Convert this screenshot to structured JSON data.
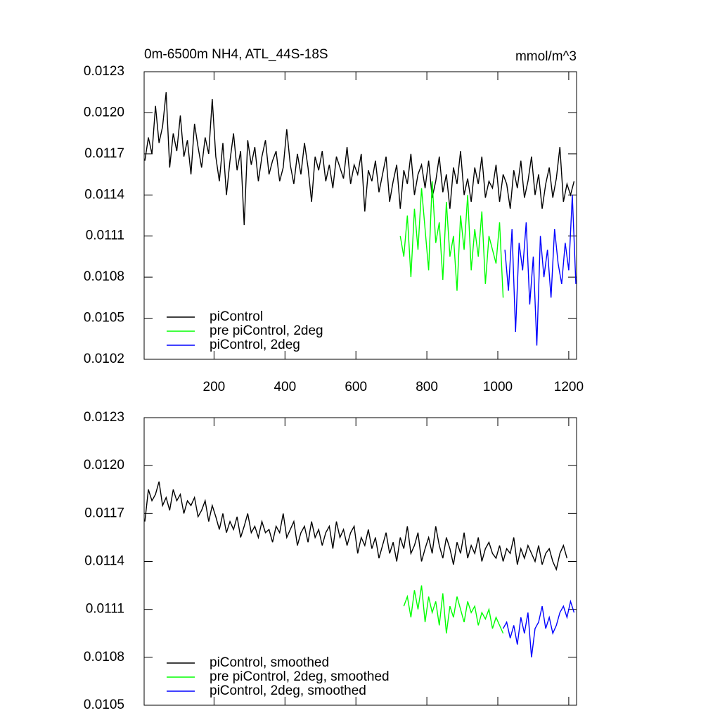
{
  "chart_data": [
    {
      "type": "line",
      "title": "0m-6500m NH4, ATL_44S-18S",
      "units": "mmol/m^3",
      "xlim": [
        3,
        1222
      ],
      "xticks": [
        200,
        400,
        600,
        800,
        1000,
        1200
      ],
      "xtick_labels": true,
      "ylim": [
        0.0102,
        0.0123
      ],
      "yticks": [
        0.0123,
        {
          "value": 0.012,
          "label": "0.0120"
        },
        0.0117,
        0.0114,
        0.0111,
        0.0108,
        0.0105,
        0.0102
      ],
      "legend": "lower left",
      "series": [
        {
          "name": "piControl",
          "color": "#000000",
          "x": [
            5,
            15,
            25,
            35,
            45,
            55,
            65,
            75,
            85,
            95,
            105,
            115,
            125,
            135,
            145,
            155,
            165,
            175,
            185,
            195,
            205,
            215,
            225,
            235,
            245,
            255,
            265,
            275,
            285,
            295,
            305,
            315,
            325,
            335,
            345,
            355,
            365,
            375,
            385,
            395,
            405,
            415,
            425,
            435,
            445,
            455,
            465,
            475,
            485,
            495,
            505,
            515,
            525,
            535,
            545,
            555,
            565,
            575,
            585,
            595,
            605,
            615,
            625,
            635,
            645,
            655,
            665,
            675,
            685,
            695,
            705,
            715,
            725,
            735,
            745,
            755,
            765,
            775,
            785,
            795,
            805,
            815,
            825,
            835,
            845,
            855,
            865,
            875,
            885,
            895,
            905,
            915,
            925,
            935,
            945,
            955,
            965,
            975,
            985,
            995,
            1005,
            1015,
            1025,
            1035,
            1045,
            1055,
            1065,
            1075,
            1085,
            1095,
            1105,
            1115,
            1125,
            1135,
            1145,
            1155,
            1165,
            1175,
            1185,
            1195,
            1205,
            1215
          ],
          "values": [
            0.01165,
            0.01182,
            0.0117,
            0.01205,
            0.01178,
            0.0119,
            0.01215,
            0.0116,
            0.01185,
            0.01172,
            0.01198,
            0.01168,
            0.0118,
            0.01155,
            0.01192,
            0.01175,
            0.0116,
            0.01182,
            0.0117,
            0.0121,
            0.01168,
            0.0115,
            0.01178,
            0.0114,
            0.01165,
            0.01185,
            0.01158,
            0.01172,
            0.01118,
            0.0118,
            0.01162,
            0.01175,
            0.0115,
            0.01168,
            0.0118,
            0.01155,
            0.01165,
            0.01172,
            0.0115,
            0.0116,
            0.01188,
            0.01162,
            0.01148,
            0.0117,
            0.01155,
            0.01178,
            0.0116,
            0.01135,
            0.01168,
            0.01158,
            0.01172,
            0.0115,
            0.01162,
            0.01145,
            0.01168,
            0.0116,
            0.01152,
            0.01175,
            0.01148,
            0.01162,
            0.01155,
            0.0117,
            0.01128,
            0.01158,
            0.0115,
            0.01165,
            0.01142,
            0.01155,
            0.01168,
            0.01135,
            0.0115,
            0.01162,
            0.0113,
            0.01158,
            0.01148,
            0.0117,
            0.0114,
            0.01155,
            0.01162,
            0.01145,
            0.01165,
            0.01138,
            0.0115,
            0.01168,
            0.01142,
            0.01155,
            0.0113,
            0.0116,
            0.01148,
            0.01172,
            0.0114,
            0.01152,
            0.01135,
            0.0116,
            0.01148,
            0.01168,
            0.01138,
            0.0115,
            0.01145,
            0.01162,
            0.01135,
            0.01155,
            0.01148,
            0.0113,
            0.01158,
            0.01145,
            0.01165,
            0.01138,
            0.0115,
            0.01168,
            0.0114,
            0.01155,
            0.0113,
            0.01148,
            0.0116,
            0.01138,
            0.01152,
            0.01175,
            0.01135,
            0.01148,
            0.0114,
            0.0115
          ]
        },
        {
          "name": "pre piControl, 2deg",
          "color": "#00ff00",
          "x": [
            725,
            735,
            745,
            755,
            765,
            775,
            785,
            795,
            805,
            815,
            825,
            835,
            845,
            855,
            865,
            875,
            885,
            895,
            905,
            915,
            925,
            935,
            945,
            955,
            965,
            975,
            985,
            995,
            1005,
            1015
          ],
          "values": [
            0.0111,
            0.01095,
            0.01125,
            0.0108,
            0.0113,
            0.011,
            0.01145,
            0.01115,
            0.01085,
            0.0115,
            0.01105,
            0.0112,
            0.01078,
            0.01135,
            0.01095,
            0.0111,
            0.0107,
            0.01125,
            0.011,
            0.0114,
            0.01085,
            0.01115,
            0.01095,
            0.01128,
            0.01075,
            0.0111,
            0.011,
            0.0109,
            0.0112,
            0.01065
          ]
        },
        {
          "name": "piControl, 2deg",
          "color": "#0000ff",
          "x": [
            1020,
            1030,
            1040,
            1050,
            1060,
            1070,
            1080,
            1090,
            1100,
            1110,
            1120,
            1130,
            1140,
            1150,
            1160,
            1170,
            1180,
            1190,
            1200,
            1210,
            1220
          ],
          "values": [
            0.011,
            0.0107,
            0.01115,
            0.0104,
            0.01105,
            0.01085,
            0.0112,
            0.0106,
            0.01095,
            0.0103,
            0.0111,
            0.0108,
            0.011,
            0.01065,
            0.01115,
            0.0109,
            0.01075,
            0.01105,
            0.01085,
            0.0114,
            0.01075
          ]
        }
      ]
    },
    {
      "type": "line",
      "xlim": [
        3,
        1222
      ],
      "xticks": [
        200,
        400,
        600,
        800,
        1000,
        1200
      ],
      "xtick_labels": false,
      "ylim": [
        0.0105,
        0.0123
      ],
      "yticks": [
        0.0123,
        {
          "value": 0.012,
          "label": "0.0120"
        },
        0.0117,
        0.0114,
        0.0111,
        0.0108,
        0.0105
      ],
      "legend": "lower left",
      "series": [
        {
          "name": "piControl, smoothed",
          "color": "#000000",
          "x": [
            5,
            15,
            25,
            35,
            45,
            55,
            65,
            75,
            85,
            95,
            105,
            115,
            125,
            135,
            145,
            155,
            165,
            175,
            185,
            195,
            205,
            215,
            225,
            235,
            245,
            255,
            265,
            275,
            285,
            295,
            305,
            315,
            325,
            335,
            345,
            355,
            365,
            375,
            385,
            395,
            405,
            415,
            425,
            435,
            445,
            455,
            465,
            475,
            485,
            495,
            505,
            515,
            525,
            535,
            545,
            555,
            565,
            575,
            585,
            595,
            605,
            615,
            625,
            635,
            645,
            655,
            665,
            675,
            685,
            695,
            705,
            715,
            725,
            735,
            745,
            755,
            765,
            775,
            785,
            795,
            805,
            815,
            825,
            835,
            845,
            855,
            865,
            875,
            885,
            895,
            905,
            915,
            925,
            935,
            945,
            955,
            965,
            975,
            985,
            995,
            1005,
            1015,
            1025,
            1035,
            1045,
            1055,
            1065,
            1075,
            1085,
            1095,
            1105,
            1115,
            1125,
            1135,
            1145,
            1155,
            1165,
            1175,
            1185,
            1195
          ],
          "values": [
            0.01165,
            0.01185,
            0.01178,
            0.01182,
            0.0119,
            0.01175,
            0.0118,
            0.01172,
            0.01185,
            0.01178,
            0.01182,
            0.0117,
            0.01178,
            0.01175,
            0.0118,
            0.01168,
            0.01172,
            0.01178,
            0.01165,
            0.01175,
            0.01168,
            0.0116,
            0.0117,
            0.01158,
            0.01165,
            0.0116,
            0.01168,
            0.01155,
            0.01162,
            0.0117,
            0.01158,
            0.01162,
            0.01155,
            0.01165,
            0.01158,
            0.0116,
            0.01152,
            0.01162,
            0.01158,
            0.0117,
            0.01155,
            0.0116,
            0.01165,
            0.0115,
            0.01158,
            0.01162,
            0.01152,
            0.01165,
            0.01155,
            0.0116,
            0.0115,
            0.01158,
            0.01162,
            0.01148,
            0.01165,
            0.01155,
            0.0116,
            0.0115,
            0.01158,
            0.01162,
            0.01145,
            0.01155,
            0.0115,
            0.0116,
            0.01148,
            0.01155,
            0.01142,
            0.0115,
            0.01158,
            0.01145,
            0.01152,
            0.0114,
            0.01155,
            0.01148,
            0.01162,
            0.01145,
            0.0115,
            0.01158,
            0.0114,
            0.01148,
            0.01155,
            0.01145,
            0.01162,
            0.0115,
            0.01142,
            0.01155,
            0.01148,
            0.01138,
            0.01152,
            0.01145,
            0.01158,
            0.01142,
            0.0115,
            0.01145,
            0.01155,
            0.0114,
            0.01148,
            0.01152,
            0.01145,
            0.01142,
            0.0115,
            0.0114,
            0.01148,
            0.01145,
            0.01155,
            0.01138,
            0.01148,
            0.01142,
            0.0115,
            0.01145,
            0.0114,
            0.0115,
            0.01138,
            0.01145,
            0.01148,
            0.0114,
            0.01135,
            0.01145,
            0.0115,
            0.01142
          ]
        },
        {
          "name": "pre piControl, 2deg, smoothed",
          "color": "#00ff00",
          "x": [
            735,
            745,
            755,
            765,
            775,
            785,
            795,
            805,
            815,
            825,
            835,
            845,
            855,
            865,
            875,
            885,
            895,
            905,
            915,
            925,
            935,
            945,
            955,
            965,
            975,
            985,
            995,
            1005,
            1015
          ],
          "values": [
            0.01112,
            0.01118,
            0.01105,
            0.01122,
            0.0111,
            0.01125,
            0.01102,
            0.01118,
            0.01108,
            0.01115,
            0.011,
            0.0112,
            0.01095,
            0.01112,
            0.01105,
            0.01118,
            0.0111,
            0.01102,
            0.01115,
            0.01108,
            0.01112,
            0.011,
            0.01108,
            0.01104,
            0.0111,
            0.01098,
            0.01105,
            0.011,
            0.01095
          ]
        },
        {
          "name": "piControl, 2deg, smoothed",
          "color": "#0000ff",
          "x": [
            1015,
            1025,
            1035,
            1045,
            1055,
            1065,
            1075,
            1085,
            1095,
            1105,
            1115,
            1125,
            1135,
            1145,
            1155,
            1165,
            1175,
            1185,
            1195,
            1205,
            1215
          ],
          "values": [
            0.01098,
            0.01102,
            0.01092,
            0.011,
            0.01088,
            0.01105,
            0.01095,
            0.01108,
            0.0108,
            0.01098,
            0.01102,
            0.01112,
            0.01098,
            0.01105,
            0.01095,
            0.011,
            0.01108,
            0.01112,
            0.01105,
            0.01115,
            0.01108
          ]
        }
      ]
    }
  ]
}
